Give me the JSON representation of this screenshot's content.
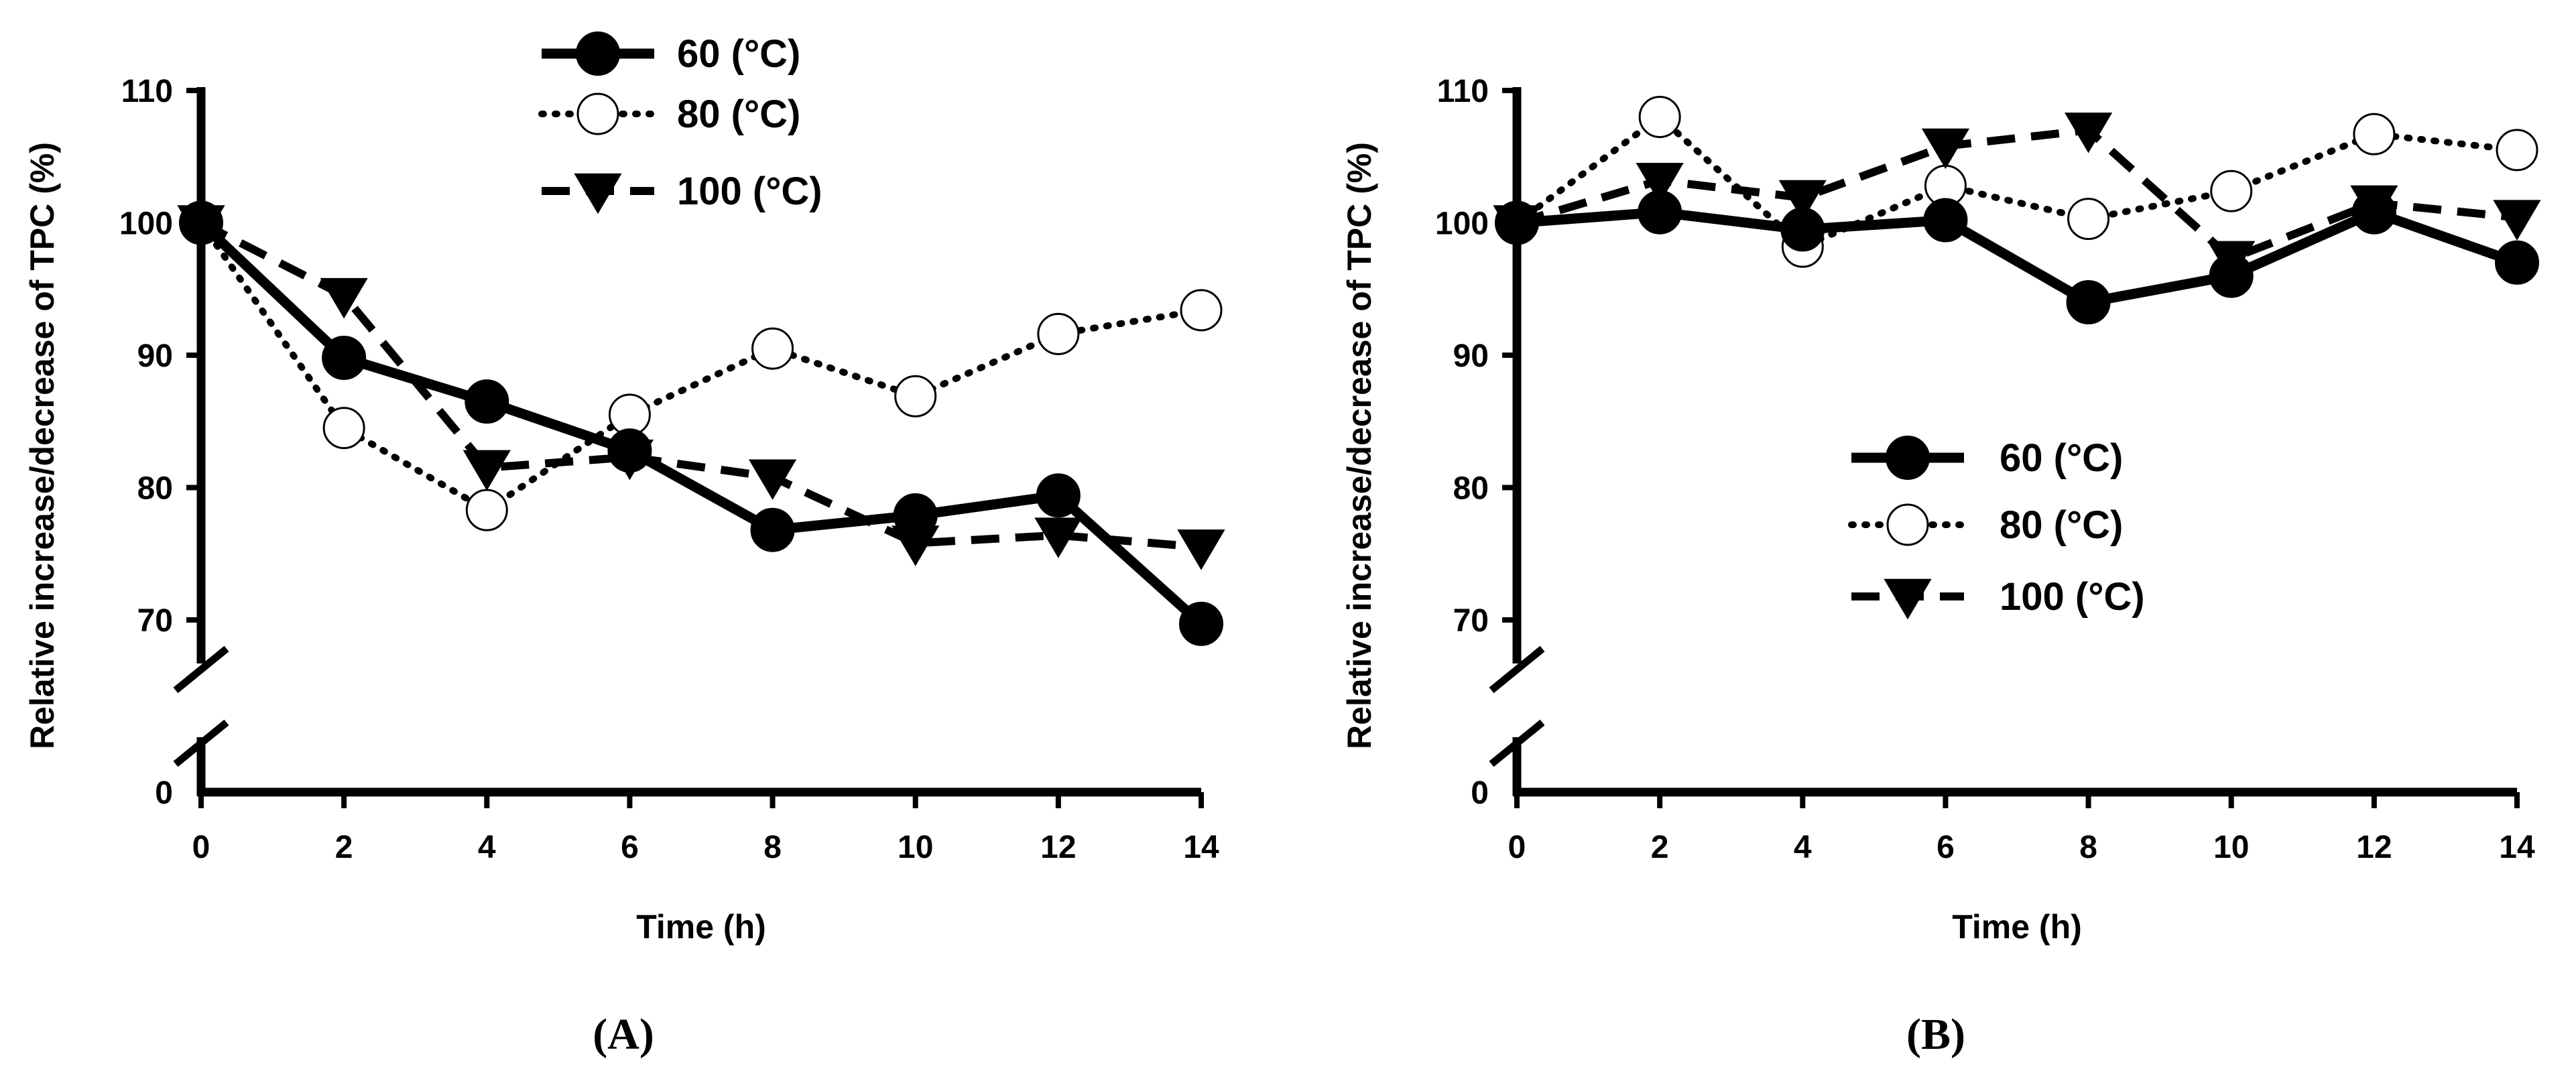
{
  "chart_data": [
    {
      "type": "line",
      "panel_label": "(A)",
      "xlabel": "Time (h)",
      "ylabel": "Relative increase/decrease of  TPC (%)",
      "x": [
        0,
        2,
        4,
        6,
        8,
        10,
        12,
        14
      ],
      "x_ticks": [
        "0",
        "2",
        "4",
        "6",
        "8",
        "10",
        "12",
        "14"
      ],
      "y_ticks": [
        "0",
        "70",
        "80",
        "90",
        "100",
        "110"
      ],
      "y_range_upper": [
        70,
        110
      ],
      "y_axis_break": true,
      "legend_position": "top-center",
      "series": [
        {
          "name": "60",
          "unit": "(°C)",
          "marker": "filled-circle",
          "line": "solid",
          "values": [
            100,
            89.8,
            86.5,
            82.8,
            76.8,
            77.9,
            79.4,
            69.7
          ]
        },
        {
          "name": "80",
          "unit": "(°C)",
          "marker": "open-circle",
          "line": "dotted",
          "values": [
            100,
            84.5,
            78.3,
            85.5,
            90.5,
            86.9,
            91.6,
            93.4
          ]
        },
        {
          "name": "100",
          "unit": "(°C)",
          "marker": "filled-triangle-down",
          "line": "dashed",
          "values": [
            100,
            94.5,
            81.5,
            82.3,
            80.8,
            75.8,
            76.4,
            75.5
          ]
        }
      ]
    },
    {
      "type": "line",
      "panel_label": "(B)",
      "xlabel": "Time (h)",
      "ylabel": "Relative increase/decrease of  TPC (%)",
      "x": [
        0,
        2,
        4,
        6,
        8,
        10,
        12,
        14
      ],
      "x_ticks": [
        "0",
        "2",
        "4",
        "6",
        "8",
        "10",
        "12",
        "14"
      ],
      "y_ticks": [
        "0",
        "70",
        "80",
        "90",
        "100",
        "110"
      ],
      "y_range_upper": [
        70,
        110
      ],
      "y_axis_break": true,
      "legend_position": "center",
      "series": [
        {
          "name": "60",
          "unit": "(°C)",
          "marker": "filled-circle",
          "line": "solid",
          "values": [
            100,
            100.8,
            99.5,
            100.2,
            94.0,
            96.0,
            100.8,
            97.0
          ]
        },
        {
          "name": "80",
          "unit": "(°C)",
          "marker": "open-circle",
          "line": "dotted",
          "values": [
            100,
            108.0,
            98.2,
            102.8,
            100.3,
            102.4,
            106.7,
            105.5
          ]
        },
        {
          "name": "100",
          "unit": "(°C)",
          "marker": "filled-triangle-down",
          "line": "dashed",
          "values": [
            100,
            103.2,
            101.9,
            105.8,
            107.0,
            97.3,
            101.5,
            100.4
          ]
        }
      ]
    }
  ]
}
